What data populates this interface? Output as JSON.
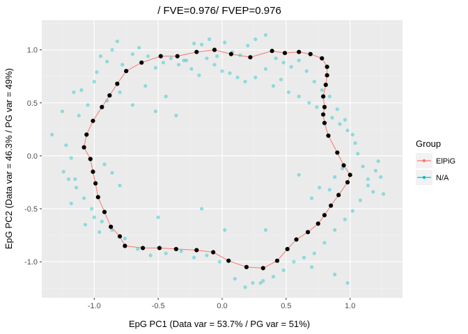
{
  "chart_data": {
    "type": "scatter",
    "title": "/ FVE=0.976/ FVEP=0.976",
    "xlabel": "EpG PC1 (Data var = 53.7% / PG var = 51%)",
    "ylabel": "EpG PC2 (Data var = 46.3% / PG var = 49%)",
    "xlim": [
      -1.41,
      1.41
    ],
    "ylim": [
      -1.34,
      1.28
    ],
    "xticks": [
      -1.0,
      -0.5,
      0.0,
      0.5,
      1.0
    ],
    "xtick_labels": [
      "-1.0",
      "-0.5",
      "0.0",
      "0.5",
      "1.0"
    ],
    "yticks": [
      -1.0,
      -0.5,
      0.0,
      0.5,
      1.0
    ],
    "ytick_labels": [
      "-1.0",
      "-0.5",
      "0.0",
      "0.5",
      "1.0"
    ],
    "grid": true,
    "legend": {
      "title": "Group",
      "position": "right",
      "entries": [
        {
          "label": "ElPiG",
          "color": "#F8766D"
        },
        {
          "label": "N/A",
          "color": "#00BFC4"
        }
      ]
    },
    "colors": {
      "panel": "#EBEBEB",
      "grid_major": "#FFFFFF",
      "grid_minor": "#F2F2F2",
      "path": "#F8766D",
      "nodes": "#000000",
      "data_points": "#00BFC4"
    },
    "series": [
      {
        "name": "ElPiG",
        "type": "closed-path-with-nodes",
        "x": [
          -0.06,
          -0.2,
          -0.35,
          -0.48,
          -0.63,
          -0.75,
          -0.82,
          -0.88,
          -0.94,
          -1.01,
          -1.06,
          -1.08,
          -1.03,
          -1.01,
          -0.99,
          -0.97,
          -0.92,
          -0.87,
          -0.8,
          -0.76,
          -0.62,
          -0.49,
          -0.36,
          -0.2,
          -0.07,
          0.05,
          0.19,
          0.32,
          0.43,
          0.51,
          0.58,
          0.67,
          0.75,
          0.8,
          0.85,
          0.91,
          0.98,
          1.0,
          0.95,
          0.9,
          0.83,
          0.8,
          0.79,
          0.8,
          0.79,
          0.81,
          0.82,
          0.82,
          0.78,
          0.69,
          0.6,
          0.49,
          0.39,
          0.22,
          0.07
        ],
        "y": [
          1.0,
          0.98,
          0.94,
          0.94,
          0.88,
          0.8,
          0.68,
          0.57,
          0.46,
          0.33,
          0.2,
          0.08,
          -0.03,
          -0.15,
          -0.26,
          -0.39,
          -0.53,
          -0.67,
          -0.76,
          -0.85,
          -0.87,
          -0.87,
          -0.88,
          -0.89,
          -0.91,
          -0.99,
          -1.05,
          -1.06,
          -0.99,
          -0.88,
          -0.79,
          -0.72,
          -0.64,
          -0.56,
          -0.47,
          -0.37,
          -0.25,
          -0.18,
          -0.09,
          0.03,
          0.19,
          0.31,
          0.39,
          0.46,
          0.56,
          0.67,
          0.76,
          0.84,
          0.92,
          0.96,
          0.98,
          0.97,
          0.99,
          0.93,
          0.96
        ]
      },
      {
        "name": "N/A",
        "type": "scatter",
        "x": [
          -1.33,
          -1.25,
          -1.22,
          -1.18,
          -1.15,
          -1.12,
          -1.1,
          -1.16,
          -1.2,
          -1.24,
          -1.18,
          -1.07,
          -1.05,
          -1.0,
          -0.98,
          -0.95,
          -0.9,
          -0.86,
          -0.82,
          -0.78,
          -0.7,
          -0.65,
          -0.58,
          -0.52,
          -0.46,
          -0.4,
          -0.34,
          -0.28,
          -0.22,
          -0.16,
          -0.1,
          -0.04,
          0.02,
          0.08,
          0.14,
          0.2,
          0.26,
          0.34,
          0.42,
          0.48,
          0.54,
          0.6,
          0.66,
          0.72,
          0.78,
          0.84,
          0.9,
          0.96,
          1.02,
          1.06,
          1.1,
          1.14,
          1.18,
          1.22,
          1.24,
          1.26,
          1.2,
          1.14,
          1.08,
          1.02,
          0.96,
          0.88,
          0.8,
          0.72,
          0.64,
          0.56,
          0.48,
          0.4,
          0.32,
          0.24,
          0.18,
          0.1,
          -0.02,
          -0.12,
          -0.22,
          -0.32,
          -0.44,
          -0.56,
          -0.66,
          -0.76,
          -0.86,
          -0.94,
          -1.02,
          -1.08,
          -1.14,
          -0.9,
          -0.8,
          -0.7,
          -0.6,
          -0.52,
          -0.44,
          -0.36,
          -0.3,
          -0.24,
          -0.18,
          -0.12,
          -0.06,
          0.0,
          0.06,
          0.12,
          0.18,
          0.26,
          0.34,
          0.4,
          0.46,
          0.52,
          0.6,
          0.68,
          0.74,
          0.86,
          0.92,
          0.98,
          1.04,
          -0.92,
          -0.86,
          -0.8,
          -1.0,
          -0.96,
          0.7,
          0.76,
          0.84,
          0.94,
          0.88,
          0.6,
          0.3,
          -0.5,
          -0.16,
          0.02,
          0.34,
          0.7,
          0.88,
          0.98
        ],
        "y": [
          0.2,
          0.42,
          0.1,
          -0.02,
          -0.22,
          0.38,
          0.62,
          0.6,
          -0.22,
          -0.15,
          -0.45,
          -0.65,
          0.48,
          0.7,
          0.79,
          0.94,
          0.89,
          1.0,
          1.08,
          0.86,
          0.96,
          1.02,
          0.94,
          0.83,
          0.88,
          0.92,
          0.86,
          0.9,
          1.06,
          1.05,
          1.1,
          0.94,
          1.07,
          0.98,
          0.95,
          1.04,
          1.1,
          1.14,
          0.92,
          0.88,
          0.84,
          0.9,
          0.8,
          0.7,
          0.62,
          0.56,
          0.44,
          0.34,
          0.2,
          0.02,
          -0.1,
          -0.22,
          -0.34,
          -0.05,
          -0.2,
          -0.36,
          -0.14,
          -0.28,
          -0.42,
          -0.52,
          -0.6,
          -0.7,
          -0.82,
          -0.92,
          -0.96,
          -1.0,
          -1.08,
          -1.14,
          -1.18,
          -1.2,
          -1.24,
          -1.16,
          -1.0,
          -0.94,
          -0.96,
          -0.9,
          -0.92,
          -0.94,
          -0.88,
          -0.78,
          -0.7,
          -0.62,
          -0.5,
          -0.4,
          -0.3,
          0.52,
          0.6,
          0.48,
          0.66,
          0.42,
          0.56,
          0.38,
          0.9,
          0.82,
          0.76,
          0.92,
          0.86,
          0.8,
          0.78,
          0.74,
          0.7,
          0.74,
          0.82,
          0.66,
          0.72,
          0.6,
          0.56,
          0.5,
          0.46,
          0.36,
          0.3,
          0.24,
          0.12,
          -0.08,
          -0.16,
          -0.28,
          -0.58,
          -0.72,
          -0.4,
          -0.3,
          -0.32,
          -0.12,
          -0.2,
          -0.18,
          -1.2,
          -0.58,
          -0.5,
          -0.7,
          -0.7,
          -1.05,
          -1.12,
          -1.2
        ]
      }
    ]
  }
}
